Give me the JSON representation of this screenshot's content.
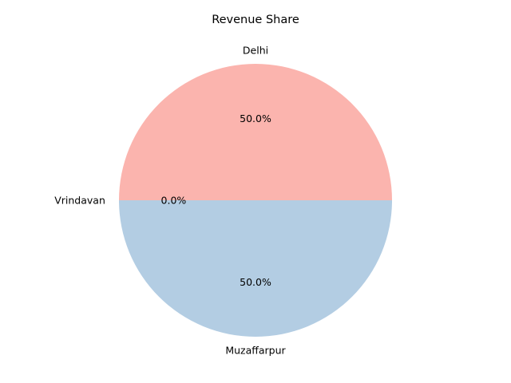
{
  "chart_data": {
    "type": "pie",
    "title": "Revenue Share",
    "slices": [
      {
        "label": "Delhi",
        "value": 50.0,
        "pct_label": "50.0%",
        "color": "#fbb4ae"
      },
      {
        "label": "Vrindavan",
        "value": 0.0,
        "pct_label": "0.0%",
        "color": "#ccebc5"
      },
      {
        "label": "Muzaffarpur",
        "value": 50.0,
        "pct_label": "50.0%",
        "color": "#b3cde3"
      }
    ],
    "start_angle_deg": 0,
    "direction": "counterclockwise",
    "legend": "none"
  }
}
